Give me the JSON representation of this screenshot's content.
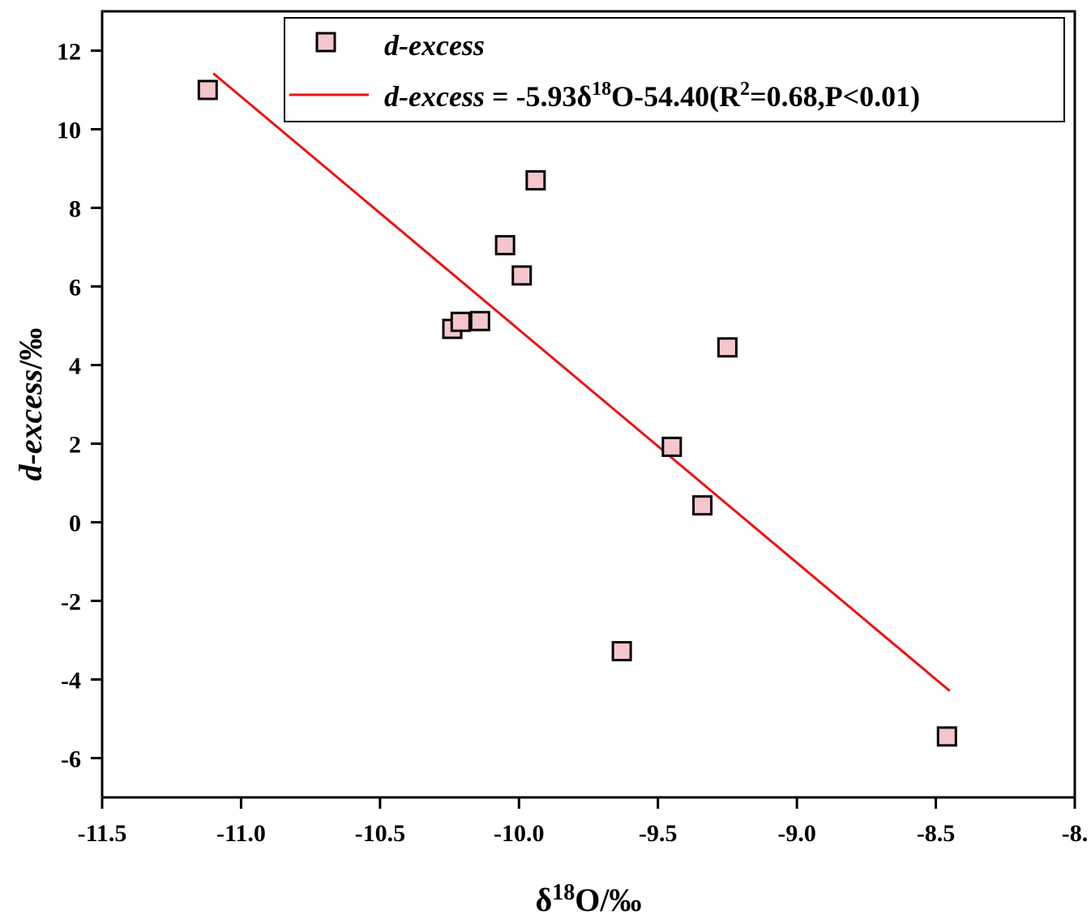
{
  "chart_data": {
    "type": "scatter",
    "title": "",
    "xlabel": {
      "base": "δ",
      "sup": "18",
      "rest": "O/‰"
    },
    "ylabel": {
      "italic": "d-excess",
      "rest": "/‰"
    },
    "xlim": [
      -11.5,
      -8.0
    ],
    "ylim": [
      -7,
      13
    ],
    "x_ticks": [
      -11.5,
      -11.0,
      -10.5,
      -10.0,
      -9.5,
      -9.0,
      -8.5,
      -8.0
    ],
    "x_tick_labels": [
      "-11.5",
      "-11.0",
      "-10.5",
      "-10.0",
      "-9.5",
      "-9.0",
      "-8.5",
      "-8."
    ],
    "y_ticks": [
      -6,
      -4,
      -2,
      0,
      2,
      4,
      6,
      8,
      10,
      12
    ],
    "y_tick_labels": [
      "-6",
      "-4",
      "-2",
      "0",
      "2",
      "4",
      "6",
      "8",
      "10",
      "12"
    ],
    "grid": false,
    "legend_position": "top-right",
    "series": [
      {
        "name": "d-excess",
        "kind": "scatter",
        "marker": "square",
        "color": "#f4c6cc",
        "edge_color": "#000000",
        "points": [
          {
            "x": -11.12,
            "y": 11.0
          },
          {
            "x": -10.24,
            "y": 4.92
          },
          {
            "x": -10.21,
            "y": 5.1
          },
          {
            "x": -10.14,
            "y": 5.12
          },
          {
            "x": -10.05,
            "y": 7.05
          },
          {
            "x": -9.99,
            "y": 6.28
          },
          {
            "x": -9.94,
            "y": 8.7
          },
          {
            "x": -9.63,
            "y": -3.28
          },
          {
            "x": -9.45,
            "y": 1.92
          },
          {
            "x": -9.34,
            "y": 0.43
          },
          {
            "x": -9.25,
            "y": 4.45
          },
          {
            "x": -8.46,
            "y": -5.45
          }
        ]
      },
      {
        "kind": "line",
        "color": "#ee1111",
        "slope": -5.93,
        "intercept": -54.4,
        "x_range": [
          -11.1,
          -8.45
        ]
      }
    ],
    "legend": {
      "entries": [
        {
          "italic": "d-excess",
          "rest": ""
        },
        {
          "italic": "d-excess",
          "parts": [
            {
              "t": " = -5.93δ",
              "sup": false
            },
            {
              "t": "18",
              "sup": true
            },
            {
              "t": "O-54.40(R",
              "sup": false
            },
            {
              "t": "2",
              "sup": true
            },
            {
              "t": "=0.68,P<0.01)",
              "sup": false
            }
          ]
        }
      ]
    }
  }
}
